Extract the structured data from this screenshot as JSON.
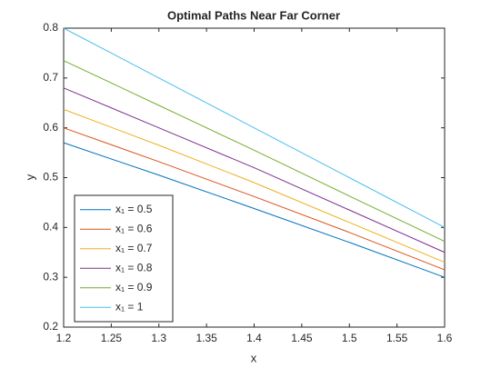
{
  "chart_data": {
    "type": "line",
    "title": "Optimal Paths Near Far Corner",
    "xlabel": "x",
    "ylabel": "y",
    "x": [
      1.2,
      1.3,
      1.4,
      1.5,
      1.6
    ],
    "series": [
      {
        "name": "x₁ = 0.5",
        "color": "#0072bd",
        "values": [
          0.57,
          0.505,
          0.438,
          0.37,
          0.3
        ]
      },
      {
        "name": "x₁ = 0.6",
        "color": "#d95319",
        "values": [
          0.6,
          0.532,
          0.462,
          0.39,
          0.315
        ]
      },
      {
        "name": "x₁ = 0.7",
        "color": "#edb120",
        "values": [
          0.637,
          0.565,
          0.49,
          0.41,
          0.33
        ]
      },
      {
        "name": "x₁ = 0.8",
        "color": "#7e2f8e",
        "values": [
          0.68,
          0.6,
          0.52,
          0.435,
          0.35
        ]
      },
      {
        "name": "x₁ = 0.9",
        "color": "#77ac30",
        "values": [
          0.735,
          0.645,
          0.555,
          0.463,
          0.372
        ]
      },
      {
        "name": "x₁ = 1",
        "color": "#4dbeee",
        "values": [
          0.8,
          0.7,
          0.6,
          0.5,
          0.4
        ]
      }
    ],
    "xlim": [
      1.2,
      1.6
    ],
    "xticks": [
      1.2,
      1.25,
      1.3,
      1.35,
      1.4,
      1.45,
      1.5,
      1.55,
      1.6
    ],
    "ylim": [
      0.2,
      0.8
    ],
    "yticks": [
      0.2,
      0.3,
      0.4,
      0.5,
      0.6,
      0.7,
      0.8
    ],
    "legend": "lower left"
  }
}
